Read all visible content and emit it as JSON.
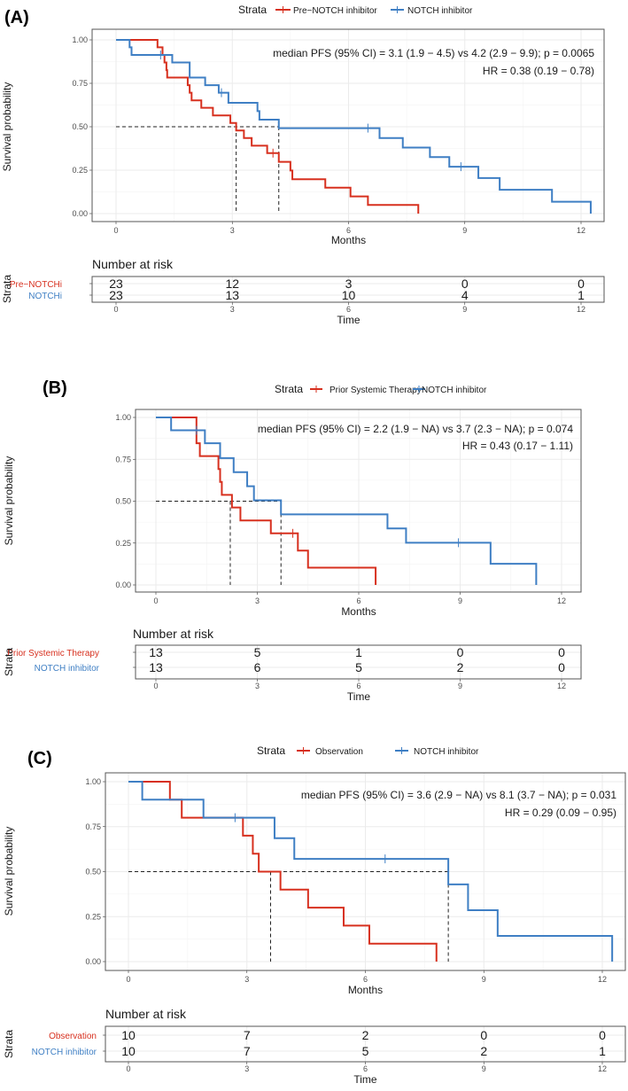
{
  "colors": {
    "red": "#d7301f",
    "blue": "#3f7fc4"
  },
  "chart_data": [
    {
      "type": "line",
      "subtype": "kaplan-meier",
      "panel_label": "(A)",
      "legend_title": "Strata",
      "xlabel": "Months",
      "ylabel": "Survival probability",
      "xlim": [
        0,
        12.5
      ],
      "ylim": [
        0,
        1
      ],
      "xticks": [
        "0",
        "3",
        "6",
        "9",
        "12"
      ],
      "yticks": [
        "0.00",
        "0.25",
        "0.50",
        "0.75",
        "1.00"
      ],
      "annotation": [
        "median PFS (95% CI) = 3.1 (1.9 − 4.5) vs 4.2 (2.9 − 9.9); p = 0.0065",
        "HR = 0.38 (0.19 − 0.78)"
      ],
      "medians": [
        3.1,
        4.2
      ],
      "series": [
        {
          "name": "Pre−NOTCH inhibitor",
          "risk_label": "Pre−NOTCHi",
          "color": "red",
          "steps": [
            [
              1.07,
              0.957
            ],
            [
              1.2,
              0.913
            ],
            [
              1.25,
              0.87
            ],
            [
              1.3,
              0.826
            ],
            [
              1.32,
              0.783
            ],
            [
              1.85,
              0.739
            ],
            [
              1.9,
              0.696
            ],
            [
              1.95,
              0.652
            ],
            [
              2.2,
              0.609
            ],
            [
              2.5,
              0.565
            ],
            [
              2.95,
              0.522
            ],
            [
              3.1,
              0.478
            ],
            [
              3.3,
              0.435
            ],
            [
              3.5,
              0.391
            ],
            [
              3.9,
              0.348
            ],
            [
              4.2,
              0.298
            ],
            [
              4.5,
              0.248
            ],
            [
              4.55,
              0.198
            ],
            [
              5.4,
              0.149
            ],
            [
              6.05,
              0.099
            ],
            [
              6.5,
              0.05
            ],
            [
              7.8,
              0
            ]
          ],
          "censored": [
            [
              4.05,
              0.348
            ]
          ],
          "at_risk": [
            23,
            12,
            3,
            0,
            0
          ]
        },
        {
          "name": "NOTCH inhibitor",
          "risk_label": "NOTCHi",
          "color": "blue",
          "steps": [
            [
              0.35,
              0.957
            ],
            [
              0.4,
              0.913
            ],
            [
              1.45,
              0.87
            ],
            [
              1.9,
              0.783
            ],
            [
              2.3,
              0.739
            ],
            [
              2.65,
              0.696
            ],
            [
              2.9,
              0.638
            ],
            [
              3.65,
              0.59
            ],
            [
              3.7,
              0.541
            ],
            [
              4.2,
              0.492
            ],
            [
              6.8,
              0.435
            ],
            [
              7.4,
              0.38
            ],
            [
              8.1,
              0.325
            ],
            [
              8.6,
              0.27
            ],
            [
              9.35,
              0.205
            ],
            [
              9.9,
              0.137
            ],
            [
              11.25,
              0.068
            ],
            [
              12.25,
              0
            ]
          ],
          "censored": [
            [
              1.15,
              0.913
            ],
            [
              2.72,
              0.696
            ],
            [
              6.5,
              0.492
            ],
            [
              8.9,
              0.27
            ]
          ],
          "at_risk": [
            23,
            13,
            10,
            4,
            1
          ]
        }
      ],
      "risk_table": {
        "title": "Number at risk",
        "ylabel": "Strata",
        "xlabel": "Time",
        "times": [
          "0",
          "3",
          "6",
          "9",
          "12"
        ]
      }
    },
    {
      "type": "line",
      "subtype": "kaplan-meier",
      "panel_label": "(B)",
      "legend_title": "Strata",
      "xlabel": "Months",
      "ylabel": "Survival probability",
      "xlim": [
        0,
        12.5
      ],
      "ylim": [
        0,
        1
      ],
      "xticks": [
        "0",
        "3",
        "6",
        "9",
        "12"
      ],
      "yticks": [
        "0.00",
        "0.25",
        "0.50",
        "0.75",
        "1.00"
      ],
      "annotation": [
        "median PFS (95% CI) = 2.2 (1.9 − NA) vs 3.7 (2.3 − NA); p = 0.074",
        "HR = 0.43 (0.17 − 1.11)"
      ],
      "medians": [
        2.2,
        3.7
      ],
      "series": [
        {
          "name": "Prior Systemic Therapy",
          "risk_label": "Prior Systemic Therapy",
          "color": "red",
          "steps": [
            [
              1.2,
              0.846
            ],
            [
              1.3,
              0.769
            ],
            [
              1.85,
              0.692
            ],
            [
              1.9,
              0.615
            ],
            [
              1.95,
              0.538
            ],
            [
              2.25,
              0.462
            ],
            [
              2.5,
              0.385
            ],
            [
              3.4,
              0.308
            ],
            [
              4.2,
              0.205
            ],
            [
              4.5,
              0.103
            ],
            [
              6.5,
              0
            ]
          ],
          "censored": [
            [
              4.05,
              0.308
            ]
          ],
          "at_risk": [
            13,
            5,
            1,
            0,
            0
          ]
        },
        {
          "name": "NOTCH inhibitor",
          "risk_label": "NOTCH inhibitor",
          "color": "blue",
          "steps": [
            [
              0.45,
              0.923
            ],
            [
              1.45,
              0.846
            ],
            [
              1.9,
              0.757
            ],
            [
              2.3,
              0.673
            ],
            [
              2.7,
              0.589
            ],
            [
              2.9,
              0.505
            ],
            [
              3.7,
              0.421
            ],
            [
              6.85,
              0.337
            ],
            [
              7.4,
              0.252
            ],
            [
              9.9,
              0.126
            ],
            [
              11.25,
              0
            ]
          ],
          "censored": [
            [
              1.2,
              0.923
            ],
            [
              8.95,
              0.252
            ]
          ],
          "at_risk": [
            13,
            6,
            5,
            2,
            0
          ]
        }
      ],
      "risk_table": {
        "title": "Number at risk",
        "ylabel": "Strata",
        "xlabel": "Time",
        "times": [
          "0",
          "3",
          "6",
          "9",
          "12"
        ]
      }
    },
    {
      "type": "line",
      "subtype": "kaplan-meier",
      "panel_label": "(C)",
      "legend_title": "Strata",
      "xlabel": "Months",
      "ylabel": "Survival probability",
      "xlim": [
        0,
        12.5
      ],
      "ylim": [
        0,
        1
      ],
      "xticks": [
        "0",
        "3",
        "6",
        "9",
        "12"
      ],
      "yticks": [
        "0.00",
        "0.25",
        "0.50",
        "0.75",
        "1.00"
      ],
      "annotation": [
        "median PFS (95% CI) = 3.6 (2.9 − NA) vs 8.1 (3.7 − NA); p = 0.031",
        "HR = 0.29 (0.09 − 0.95)"
      ],
      "medians": [
        3.6,
        8.1
      ],
      "series": [
        {
          "name": "Observation",
          "risk_label": "Observation",
          "color": "red",
          "steps": [
            [
              1.05,
              0.9
            ],
            [
              1.35,
              0.8
            ],
            [
              2.9,
              0.7
            ],
            [
              3.15,
              0.6
            ],
            [
              3.3,
              0.5
            ],
            [
              3.85,
              0.4
            ],
            [
              4.55,
              0.3
            ],
            [
              5.45,
              0.2
            ],
            [
              6.1,
              0.1
            ],
            [
              7.8,
              0
            ]
          ],
          "censored": [],
          "at_risk": [
            10,
            7,
            2,
            0,
            0
          ]
        },
        {
          "name": "NOTCH inhibitor",
          "risk_label": "NOTCH inhibitor",
          "color": "blue",
          "steps": [
            [
              0.35,
              0.9
            ],
            [
              1.9,
              0.8
            ],
            [
              3.7,
              0.686
            ],
            [
              4.2,
              0.571
            ],
            [
              8.1,
              0.429
            ],
            [
              8.6,
              0.286
            ],
            [
              9.35,
              0.143
            ],
            [
              12.25,
              0
            ]
          ],
          "censored": [
            [
              2.7,
              0.8
            ],
            [
              6.5,
              0.571
            ]
          ],
          "at_risk": [
            10,
            7,
            5,
            2,
            1
          ]
        }
      ],
      "risk_table": {
        "title": "Number at risk",
        "ylabel": "Strata",
        "xlabel": "Time",
        "times": [
          "0",
          "3",
          "6",
          "9",
          "12"
        ]
      }
    }
  ]
}
